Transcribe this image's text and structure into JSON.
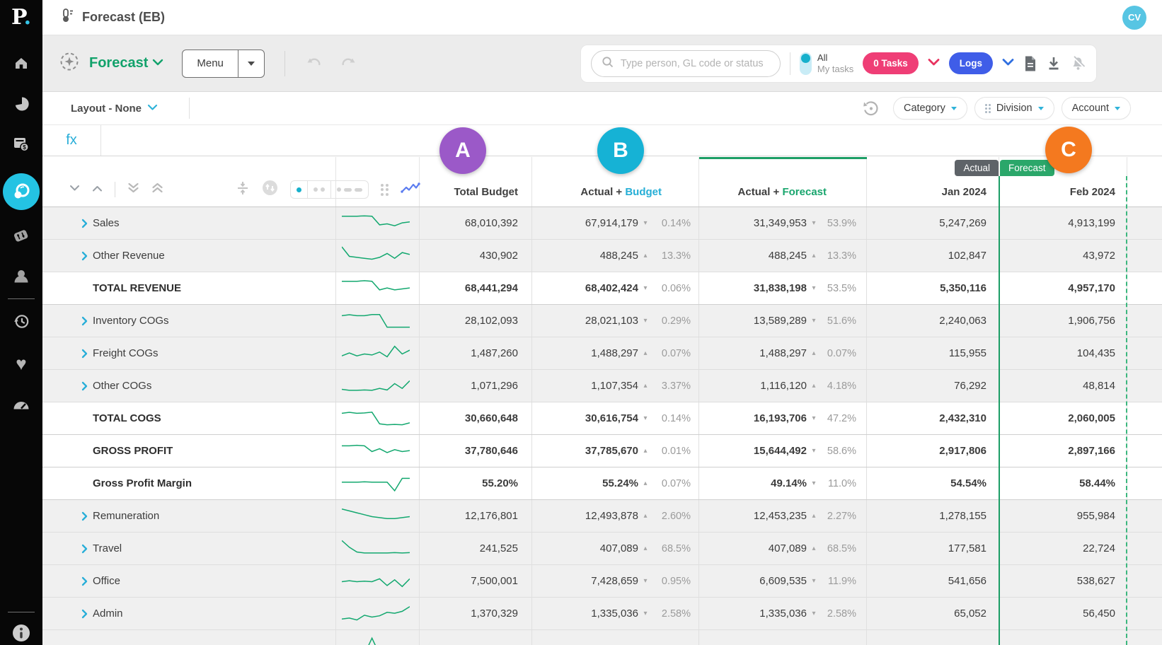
{
  "app": {
    "logo_p": "P",
    "logo_dot": ".",
    "title": "Forecast (EB)",
    "avatar_initials": "CV"
  },
  "menubar": {
    "view_name": "Forecast",
    "menu_button": "Menu"
  },
  "search": {
    "placeholder": "Type person, GL code or status"
  },
  "tasks": {
    "all": "All",
    "my_tasks": "My tasks",
    "tasks_count": "0 Tasks",
    "logs": "Logs"
  },
  "filterbar": {
    "layout": "Layout - None",
    "pills": [
      "Category",
      "Division",
      "Account"
    ]
  },
  "formula_bar": {
    "label": "fx"
  },
  "markers": [
    {
      "label": "A",
      "color": "#9b59c8"
    },
    {
      "label": "B",
      "color": "#16b2d5"
    },
    {
      "label": "C",
      "color": "#f4791f"
    }
  ],
  "colors": {
    "green": "#18a56d",
    "cyan": "#25aed6",
    "pink": "#ef3e76",
    "blue": "#3f5de8",
    "badge_actual": "#5e6368",
    "badge_forecast": "#2ba76a",
    "sidebar_active": "#24c3e3"
  },
  "table": {
    "headers": {
      "total_budget": "Total Budget",
      "actual_prefix": "Actual + ",
      "budget_word": "Budget",
      "forecast_word": "Forecast",
      "jan": "Jan 2024",
      "feb": "Feb 2024"
    },
    "badges": {
      "actual": "Actual",
      "forecast": "Forecast"
    },
    "rows": [
      {
        "label": "Sales",
        "type": "group",
        "tb": "68,010,392",
        "ab": "67,914,179",
        "abDir": "down",
        "abPct": "0.14%",
        "af": "31,349,953",
        "afDir": "down",
        "afPct": "53.9%",
        "jan": "5,247,269",
        "feb": "4,913,199",
        "spark": [
          9,
          9,
          9,
          9.2,
          9,
          4.5,
          5,
          4,
          5.5,
          6
        ]
      },
      {
        "label": "Other Revenue",
        "type": "group",
        "tb": "430,902",
        "ab": "488,245",
        "abDir": "up",
        "abPct": "13.3%",
        "af": "488,245",
        "afDir": "up",
        "afPct": "13.3%",
        "jan": "102,847",
        "feb": "43,972",
        "spark": [
          10,
          5,
          4.5,
          4,
          3.5,
          4.5,
          6.5,
          4,
          7,
          6
        ]
      },
      {
        "label": "TOTAL REVENUE",
        "type": "total",
        "tb": "68,441,294",
        "ab": "68,402,424",
        "abDir": "down",
        "abPct": "0.06%",
        "af": "31,838,198",
        "afDir": "down",
        "afPct": "53.5%",
        "jan": "5,350,116",
        "feb": "4,957,170",
        "spark": [
          9,
          9,
          9,
          9.3,
          9,
          4.5,
          5.5,
          4.5,
          5,
          5.5
        ]
      },
      {
        "label": "Inventory COGs",
        "type": "group",
        "tb": "28,102,093",
        "ab": "28,021,103",
        "abDir": "down",
        "abPct": "0.29%",
        "af": "13,589,289",
        "afDir": "down",
        "afPct": "51.6%",
        "jan": "2,240,063",
        "feb": "1,906,756",
        "spark": [
          8,
          8.5,
          8,
          8,
          8.6,
          8.6,
          2,
          2,
          2,
          2
        ]
      },
      {
        "label": "Freight COGs",
        "type": "group",
        "tb": "1,487,260",
        "ab": "1,488,297",
        "abDir": "up",
        "abPct": "0.07%",
        "af": "1,488,297",
        "afDir": "up",
        "afPct": "0.07%",
        "jan": "115,955",
        "feb": "104,435",
        "spark": [
          4,
          5.5,
          4,
          5,
          4.5,
          6,
          3.5,
          9,
          5,
          7
        ]
      },
      {
        "label": "Other COGs",
        "type": "group",
        "tb": "1,071,296",
        "ab": "1,107,354",
        "abDir": "up",
        "abPct": "3.37%",
        "af": "1,116,120",
        "afDir": "up",
        "afPct": "4.18%",
        "jan": "76,292",
        "feb": "48,814",
        "spark": [
          3.5,
          3,
          3,
          3.2,
          3,
          4,
          3.2,
          6.5,
          4,
          8
        ]
      },
      {
        "label": "TOTAL COGS",
        "type": "total",
        "tb": "30,660,648",
        "ab": "30,616,754",
        "abDir": "down",
        "abPct": "0.14%",
        "af": "16,193,706",
        "afDir": "down",
        "afPct": "47.2%",
        "jan": "2,432,310",
        "feb": "2,060,005",
        "spark": [
          8,
          8.5,
          8,
          8.2,
          8.6,
          2.5,
          2,
          2.2,
          2,
          3
        ]
      },
      {
        "label": "GROSS PROFIT",
        "type": "total",
        "tb": "37,780,646",
        "ab": "37,785,670",
        "abDir": "up",
        "abPct": "0.01%",
        "af": "15,644,492",
        "afDir": "down",
        "afPct": "58.6%",
        "jan": "2,917,806",
        "feb": "2,897,166",
        "spark": [
          8,
          8,
          8.3,
          8,
          5,
          6.5,
          4.5,
          6,
          5,
          5.5
        ]
      },
      {
        "label": "Gross Profit Margin",
        "type": "total",
        "tb": "55.20%",
        "ab": "55.24%",
        "abDir": "up",
        "abPct": "0.07%",
        "af": "49.14%",
        "afDir": "down",
        "afPct": "11.0%",
        "jan": "54.54%",
        "feb": "58.44%",
        "spark": [
          6,
          6,
          6,
          6.2,
          6,
          6,
          6,
          1.5,
          8,
          8
        ]
      },
      {
        "label": "Remuneration",
        "type": "group",
        "tb": "12,176,801",
        "ab": "12,493,878",
        "abDir": "up",
        "abPct": "2.60%",
        "af": "12,453,235",
        "afDir": "up",
        "afPct": "2.27%",
        "jan": "1,278,155",
        "feb": "955,984",
        "spark": [
          9,
          8,
          7,
          6,
          5,
          4.5,
          4,
          4,
          4.5,
          5
        ]
      },
      {
        "label": "Travel",
        "type": "group",
        "tb": "241,525",
        "ab": "407,089",
        "abDir": "up",
        "abPct": "68.5%",
        "af": "407,089",
        "afDir": "up",
        "afPct": "68.5%",
        "jan": "177,581",
        "feb": "22,724",
        "spark": [
          9.5,
          6,
          3.5,
          3,
          3,
          3,
          3,
          3.2,
          3,
          3.2
        ]
      },
      {
        "label": "Office",
        "type": "group",
        "tb": "7,500,001",
        "ab": "7,428,659",
        "abDir": "down",
        "abPct": "0.95%",
        "af": "6,609,535",
        "afDir": "down",
        "afPct": "11.9%",
        "jan": "541,656",
        "feb": "538,627",
        "spark": [
          5,
          5.5,
          5,
          5.3,
          5,
          6.5,
          3,
          6,
          2.5,
          6.5
        ]
      },
      {
        "label": "Admin",
        "type": "group",
        "tb": "1,370,329",
        "ab": "1,335,036",
        "abDir": "down",
        "abPct": "2.58%",
        "af": "1,335,036",
        "afDir": "down",
        "afPct": "2.58%",
        "jan": "65,052",
        "feb": "56,450",
        "spark": [
          2.5,
          3,
          2,
          4.5,
          3.5,
          4.2,
          6,
          5.5,
          6.5,
          9
        ]
      },
      {
        "label": "",
        "type": "partial",
        "tb": "",
        "ab": "",
        "abDir": null,
        "abPct": "",
        "af": "",
        "afDir": null,
        "afPct": "",
        "jan": "",
        "feb": "",
        "spark": [
          1,
          1,
          1,
          1,
          9.5,
          1,
          1,
          1,
          1,
          1
        ]
      }
    ]
  }
}
